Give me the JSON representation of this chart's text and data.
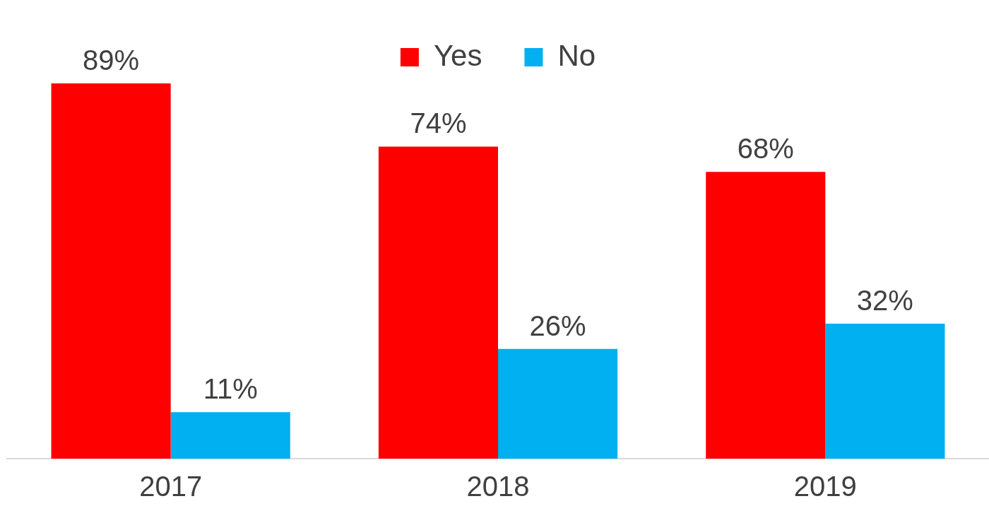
{
  "chart_data": {
    "type": "bar",
    "categories": [
      "2017",
      "2018",
      "2019"
    ],
    "series": [
      {
        "name": "Yes",
        "color": "#ff0000",
        "values": [
          89,
          74,
          68
        ],
        "value_labels": [
          "89%",
          "74%",
          "68%"
        ]
      },
      {
        "name": "No",
        "color": "#00b0f0",
        "values": [
          11,
          26,
          32
        ],
        "value_labels": [
          "11%",
          "26%",
          "32%"
        ]
      }
    ],
    "legend": "top",
    "grid": false,
    "tick_labels": "x"
  }
}
